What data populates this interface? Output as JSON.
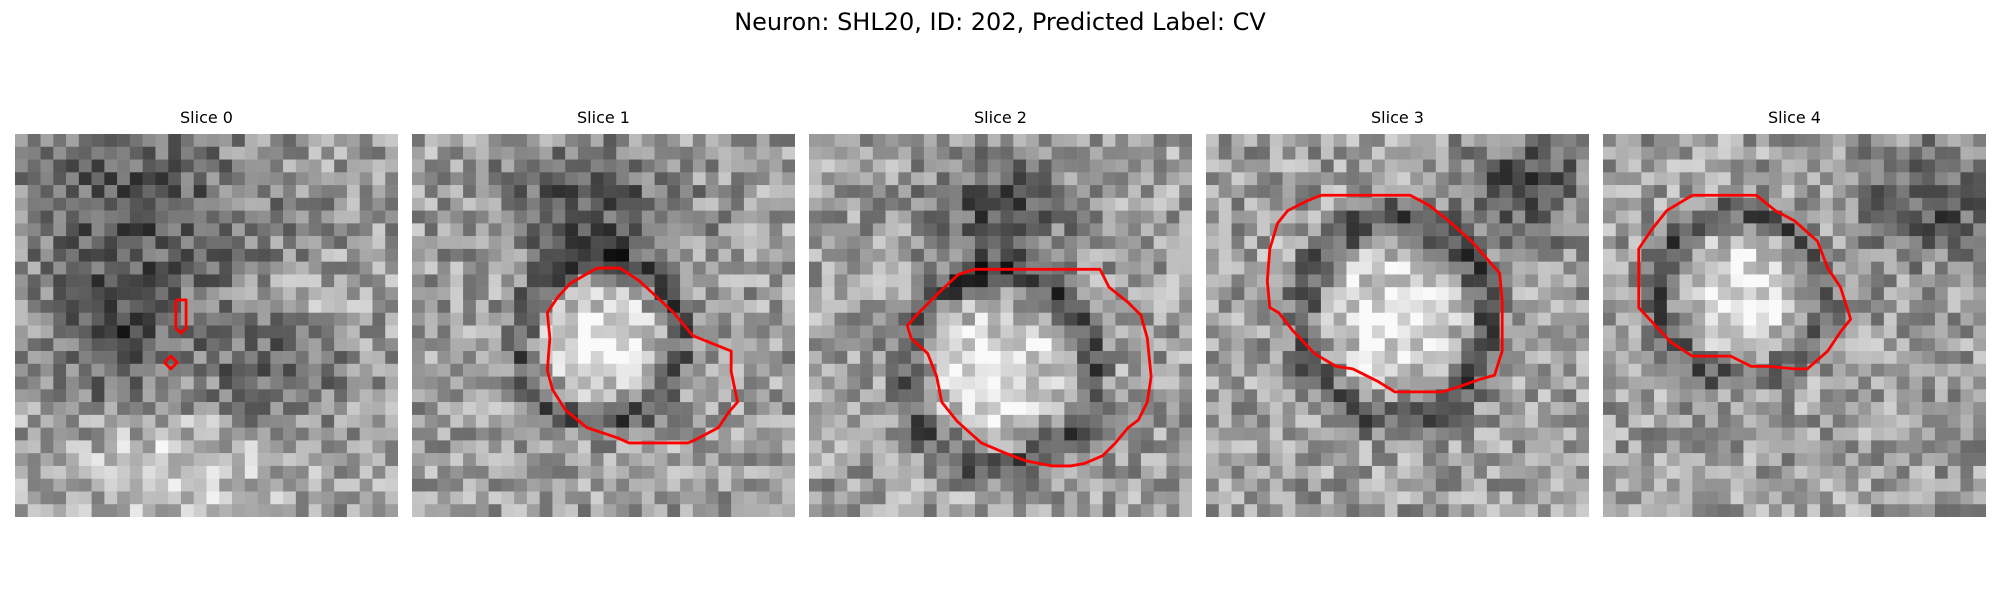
{
  "figure": {
    "title": "Neuron: SHL20, ID: 202, Predicted Label: CV"
  },
  "contour_color": "#ff0000",
  "panels": [
    {
      "title": "Slice 0",
      "content": "grayscale microscopy image with two small red contour marks"
    },
    {
      "title": "Slice 1",
      "content": "grayscale microscopy image with red contour around a bright circular body"
    },
    {
      "title": "Slice 2",
      "content": "grayscale microscopy image with red contour around a bright circular body"
    },
    {
      "title": "Slice 3",
      "content": "grayscale microscopy image with red contour around a bright oval body"
    },
    {
      "title": "Slice 4",
      "content": "grayscale microscopy image with red contour around a bright circular body"
    }
  ]
}
